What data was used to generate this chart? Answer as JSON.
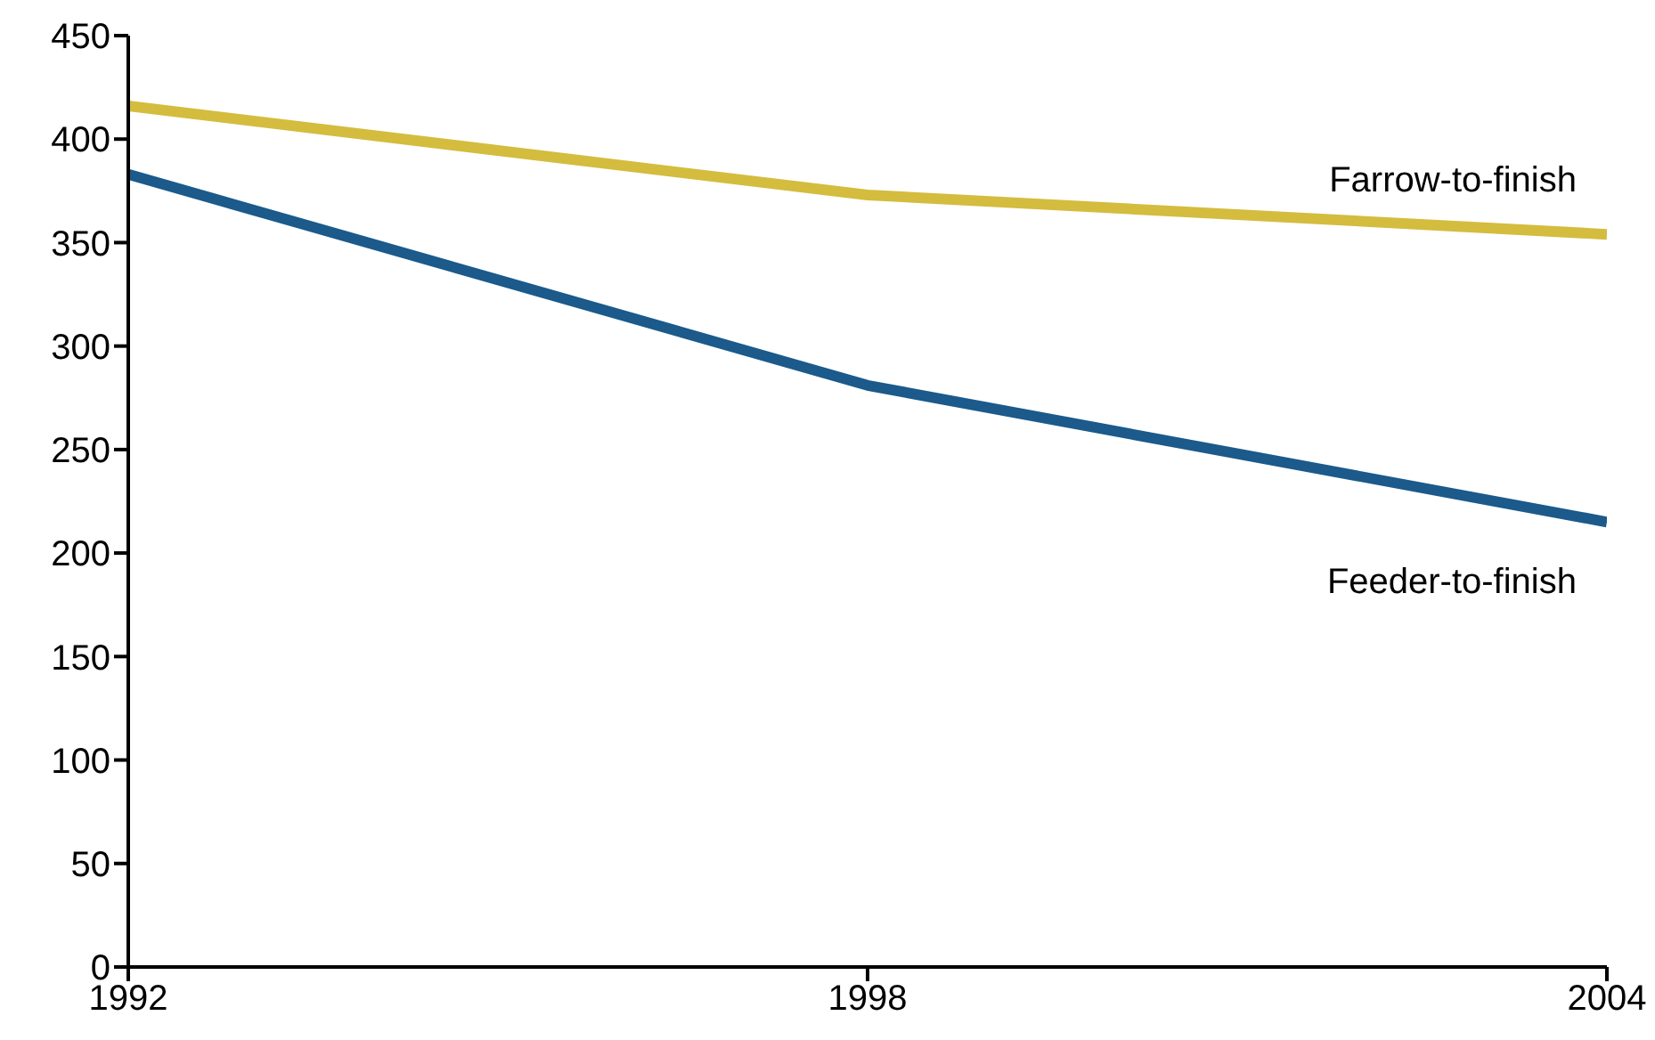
{
  "chart_data": {
    "type": "line",
    "x": [
      1992,
      1998,
      2004
    ],
    "xlim": [
      1992,
      2004
    ],
    "xticks": [
      1992,
      1998,
      2004
    ],
    "ylim": [
      0,
      450
    ],
    "yticks": [
      0,
      50,
      100,
      150,
      200,
      250,
      300,
      350,
      400,
      450
    ],
    "grid": false,
    "legend": false,
    "marker": "none",
    "series": [
      {
        "name": "Farrow-to-finish",
        "color": "#d4bc3e",
        "values": [
          416,
          373,
          354
        ]
      },
      {
        "name": "Feeder-to-finish",
        "color": "#1b5a8a",
        "values": [
          383,
          281,
          215
        ]
      }
    ]
  }
}
